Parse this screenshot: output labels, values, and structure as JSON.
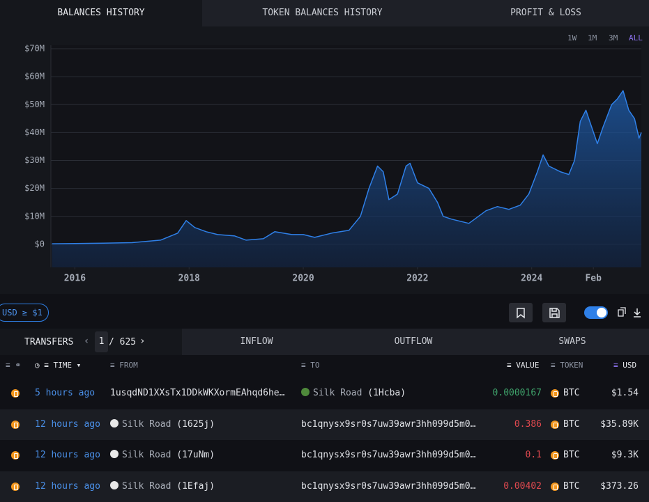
{
  "tabs": [
    "BALANCES HISTORY",
    "TOKEN BALANCES HISTORY",
    "PROFIT & LOSS"
  ],
  "ranges": [
    "1W",
    "1M",
    "3M",
    "ALL"
  ],
  "chart_data": {
    "type": "area",
    "color": "#2f80e8",
    "grid": true,
    "x": [
      2015.6,
      2016,
      2016.5,
      2017,
      2017.5,
      2017.8,
      2017.95,
      2018.1,
      2018.3,
      2018.5,
      2018.8,
      2019.0,
      2019.3,
      2019.5,
      2019.8,
      2020.0,
      2020.2,
      2020.5,
      2020.8,
      2021.0,
      2021.15,
      2021.3,
      2021.4,
      2021.5,
      2021.65,
      2021.8,
      2021.87,
      2022.0,
      2022.2,
      2022.35,
      2022.45,
      2022.6,
      2022.8,
      2022.9,
      2023.0,
      2023.2,
      2023.4,
      2023.6,
      2023.8,
      2023.95,
      2024.1,
      2024.2,
      2024.3,
      2024.5,
      2024.65,
      2024.75,
      2024.85,
      2024.95,
      2025.05,
      2025.15,
      2025.25,
      2025.4,
      2025.5,
      2025.6,
      2025.7,
      2025.8,
      2025.88,
      2025.92
    ],
    "values": [
      200000,
      300000,
      400000,
      600000,
      1500000,
      4000000,
      8500000,
      6000000,
      4500000,
      3500000,
      3000000,
      1500000,
      2000000,
      4500000,
      3500000,
      3500000,
      2500000,
      4000000,
      5000000,
      10000000,
      20000000,
      28000000,
      26000000,
      16000000,
      18000000,
      28000000,
      29000000,
      22000000,
      20000000,
      15000000,
      10000000,
      9000000,
      8000000,
      7500000,
      9000000,
      12000000,
      13500000,
      12500000,
      14000000,
      18000000,
      26000000,
      32000000,
      28000000,
      26000000,
      25000000,
      30000000,
      44000000,
      48000000,
      42000000,
      36000000,
      42000000,
      50000000,
      52000000,
      55000000,
      48000000,
      45000000,
      38000000,
      40000000
    ],
    "xlim": [
      2015.58,
      2025.92
    ],
    "xticks": [
      2016,
      2018,
      2020,
      2022,
      2024,
      {
        "value": 2025.08,
        "label": "Feb"
      }
    ],
    "ylim": [
      -8250000,
      71250000
    ],
    "yticks": [
      {
        "value": 0,
        "label": "$0"
      },
      {
        "value": 10000000,
        "label": "$10M"
      },
      {
        "value": 20000000,
        "label": "$20M"
      },
      {
        "value": 30000000,
        "label": "$30M"
      },
      {
        "value": 40000000,
        "label": "$40M"
      },
      {
        "value": 50000000,
        "label": "$50M"
      },
      {
        "value": 60000000,
        "label": "$60M"
      },
      {
        "value": 70000000,
        "label": "$70M"
      }
    ]
  },
  "filter": "USD ≥ $1",
  "transfers": {
    "tab": "TRANSFERS",
    "page": "1",
    "pages": "/ 625",
    "other_tabs": [
      "INFLOW",
      "OUTFLOW",
      "SWAPS"
    ]
  },
  "table": {
    "headers": {
      "time": "TIME",
      "from": "FROM",
      "to": "TO",
      "value": "VALUE",
      "token": "TOKEN",
      "usd": "USD"
    },
    "rows": [
      {
        "time": "5 hours ago",
        "from": "1usqdND1XXsTx1DDkWKXormEAhqd6he…",
        "to": "Silk Road",
        "to_tag": "(1Hcba)",
        "value": "0.0000167",
        "value_color": "#3fa36b",
        "token": "BTC",
        "usd": "$1.54"
      },
      {
        "time": "12 hours ago",
        "from": "Silk Road",
        "from_tag": "(1625j)",
        "to": "bc1qnysx9sr0s7uw39awr3hh099d5m0…",
        "value": "0.386",
        "value_color": "#e0494f",
        "token": "BTC",
        "usd": "$35.89K"
      },
      {
        "time": "12 hours ago",
        "from": "Silk Road",
        "from_tag": "(17uNm)",
        "to": "bc1qnysx9sr0s7uw39awr3hh099d5m0…",
        "value": "0.1",
        "value_color": "#e0494f",
        "token": "BTC",
        "usd": "$9.3K"
      },
      {
        "time": "12 hours ago",
        "from": "Silk Road",
        "from_tag": "(1Efaj)",
        "to": "bc1qnysx9sr0s7uw39awr3hh099d5m0…",
        "value": "0.00402",
        "value_color": "#e0494f",
        "token": "BTC",
        "usd": "$373.26"
      }
    ]
  }
}
